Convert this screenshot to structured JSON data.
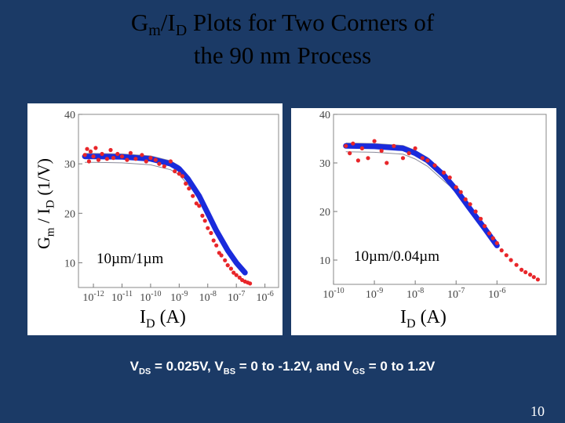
{
  "slide": {
    "title_line1_part1": "G",
    "title_line1_sub1": "m",
    "title_line1_part2": "/I",
    "title_line1_sub2": "D",
    "title_line1_part3": " Plots for Two Corners of",
    "title_line2": "the 90 nm Process",
    "ylabel_part1": "G",
    "ylabel_sub1": "m",
    "ylabel_part2": " / I",
    "ylabel_sub2": "D",
    "ylabel_part3": " (1/V)",
    "xlabel_main": "I",
    "xlabel_sub": "D",
    "xlabel_units": " (A)",
    "condition_parts": [
      "V",
      "DS",
      " = 0.025V, V",
      "BS",
      " = 0 to -1.2V, and V",
      "GS",
      " = 0 to 1.2V"
    ],
    "page_number": "10"
  },
  "colors": {
    "background": "#1b3a66",
    "measured": "#e8262a",
    "simulated": "#1a2bdc",
    "model_lines": "#8a8a9a"
  },
  "chart_data": [
    {
      "type": "scatter",
      "annotation": "10µm/1µm",
      "x_scale": "log",
      "xlim": [
        3e-13,
        3e-06
      ],
      "ylim": [
        5,
        40
      ],
      "x_ticks": [
        1e-12,
        1e-11,
        1e-10,
        1e-09,
        1e-08,
        1e-07,
        1e-06
      ],
      "x_tick_labels": [
        {
          "base": "10",
          "exp": "-12"
        },
        {
          "base": "10",
          "exp": "-11"
        },
        {
          "base": "10",
          "exp": "-10"
        },
        {
          "base": "10",
          "exp": "-9"
        },
        {
          "base": "10",
          "exp": "-8"
        },
        {
          "base": "10",
          "exp": "-7"
        },
        {
          "base": "10",
          "exp": "-6"
        }
      ],
      "y_ticks": [
        10,
        20,
        30,
        40
      ],
      "y_tick_labels": [
        "10",
        "20",
        "30",
        "40"
      ],
      "series": [
        {
          "kind": "simulated-band",
          "x": [
            5e-13,
            1e-12,
            1e-11,
            1e-10,
            5e-10,
            1e-09,
            2e-09,
            5e-09,
            1e-08,
            2e-08,
            5e-08,
            1e-07,
            2e-07
          ],
          "y": [
            31.5,
            31.5,
            31.4,
            31.0,
            30.0,
            29.0,
            27.0,
            23.5,
            20.0,
            16.5,
            12.5,
            10.0,
            8.0
          ]
        },
        {
          "kind": "measured",
          "x": [
            5e-13,
            6e-13,
            7e-13,
            8e-13,
            1e-12,
            1.2e-12,
            1.5e-12,
            2e-12,
            3e-12,
            4e-12,
            5e-12,
            7e-12,
            1e-11,
            1.5e-11,
            2e-11,
            3e-11,
            5e-11,
            7e-11,
            1e-10,
            1.5e-10,
            2e-10,
            3e-10,
            5e-10,
            7e-10,
            1e-09,
            1.3e-09,
            1.7e-09,
            2.2e-09,
            3e-09,
            4e-09,
            5e-09,
            6.5e-09,
            8e-09,
            1e-08,
            1.3e-08,
            1.6e-08,
            2e-08,
            2.5e-08,
            3e-08,
            4e-08,
            5e-08,
            6.5e-08,
            8e-08,
            1e-07,
            1.3e-07,
            1.6e-07,
            2e-07,
            2.5e-07,
            3e-07
          ],
          "y": [
            31.8,
            33.0,
            30.5,
            32.5,
            31.5,
            33.2,
            30.8,
            32.0,
            31.0,
            32.8,
            31.2,
            32.0,
            31.5,
            30.8,
            32.2,
            31.0,
            31.8,
            30.5,
            31.2,
            30.8,
            30.0,
            29.5,
            30.5,
            28.5,
            28.0,
            27.5,
            26.0,
            25.0,
            23.5,
            22.0,
            21.5,
            19.5,
            18.5,
            17.0,
            16.0,
            14.5,
            13.5,
            12.0,
            11.5,
            10.5,
            9.5,
            8.8,
            8.0,
            7.5,
            7.0,
            6.5,
            6.2,
            6.0,
            5.8
          ]
        }
      ]
    },
    {
      "type": "scatter",
      "annotation": "10µm/0.04µm",
      "x_scale": "log",
      "xlim": [
        1e-10,
        1.6e-05
      ],
      "ylim": [
        5,
        40
      ],
      "x_ticks": [
        1e-10,
        1e-09,
        1e-08,
        1e-07,
        1e-06
      ],
      "x_tick_labels": [
        {
          "base": "10",
          "exp": "-10"
        },
        {
          "base": "10",
          "exp": "-9"
        },
        {
          "base": "10",
          "exp": "-8"
        },
        {
          "base": "10",
          "exp": "-7"
        },
        {
          "base": "10",
          "exp": "-6"
        }
      ],
      "y_ticks": [
        10,
        20,
        30,
        40
      ],
      "y_tick_labels": [
        "10",
        "20",
        "30",
        "40"
      ],
      "series": [
        {
          "kind": "simulated-band",
          "x": [
            2e-10,
            1e-09,
            5e-09,
            1e-08,
            2e-08,
            5e-08,
            1e-07,
            2e-07,
            5e-07,
            1e-06
          ],
          "y": [
            33.5,
            33.4,
            33.0,
            32.0,
            30.5,
            27.5,
            24.5,
            21.0,
            16.5,
            13.0
          ]
        },
        {
          "kind": "measured",
          "x": [
            2e-10,
            2.5e-10,
            3e-10,
            4e-10,
            5e-10,
            7e-10,
            1e-09,
            1.5e-09,
            2e-09,
            3e-09,
            5e-09,
            7e-09,
            1e-08,
            1.5e-08,
            2e-08,
            3e-08,
            5e-08,
            7e-08,
            1e-07,
            1.3e-07,
            1.7e-07,
            2.2e-07,
            3e-07,
            4e-07,
            5e-07,
            6.5e-07,
            8e-07,
            1e-06,
            1.3e-06,
            1.7e-06,
            2.2e-06,
            3e-06,
            4e-06,
            5e-06,
            6.5e-06,
            8e-06,
            1e-05
          ],
          "y": [
            33.5,
            32.0,
            34.0,
            30.5,
            33.0,
            31.0,
            34.5,
            32.5,
            30.0,
            33.5,
            31.0,
            32.0,
            33.0,
            31.0,
            30.5,
            29.5,
            28.0,
            27.0,
            25.0,
            24.0,
            22.5,
            21.5,
            20.0,
            18.5,
            17.0,
            15.5,
            14.5,
            13.5,
            12.0,
            11.0,
            10.0,
            9.0,
            8.0,
            7.5,
            7.0,
            6.5,
            6.0
          ]
        }
      ]
    }
  ]
}
